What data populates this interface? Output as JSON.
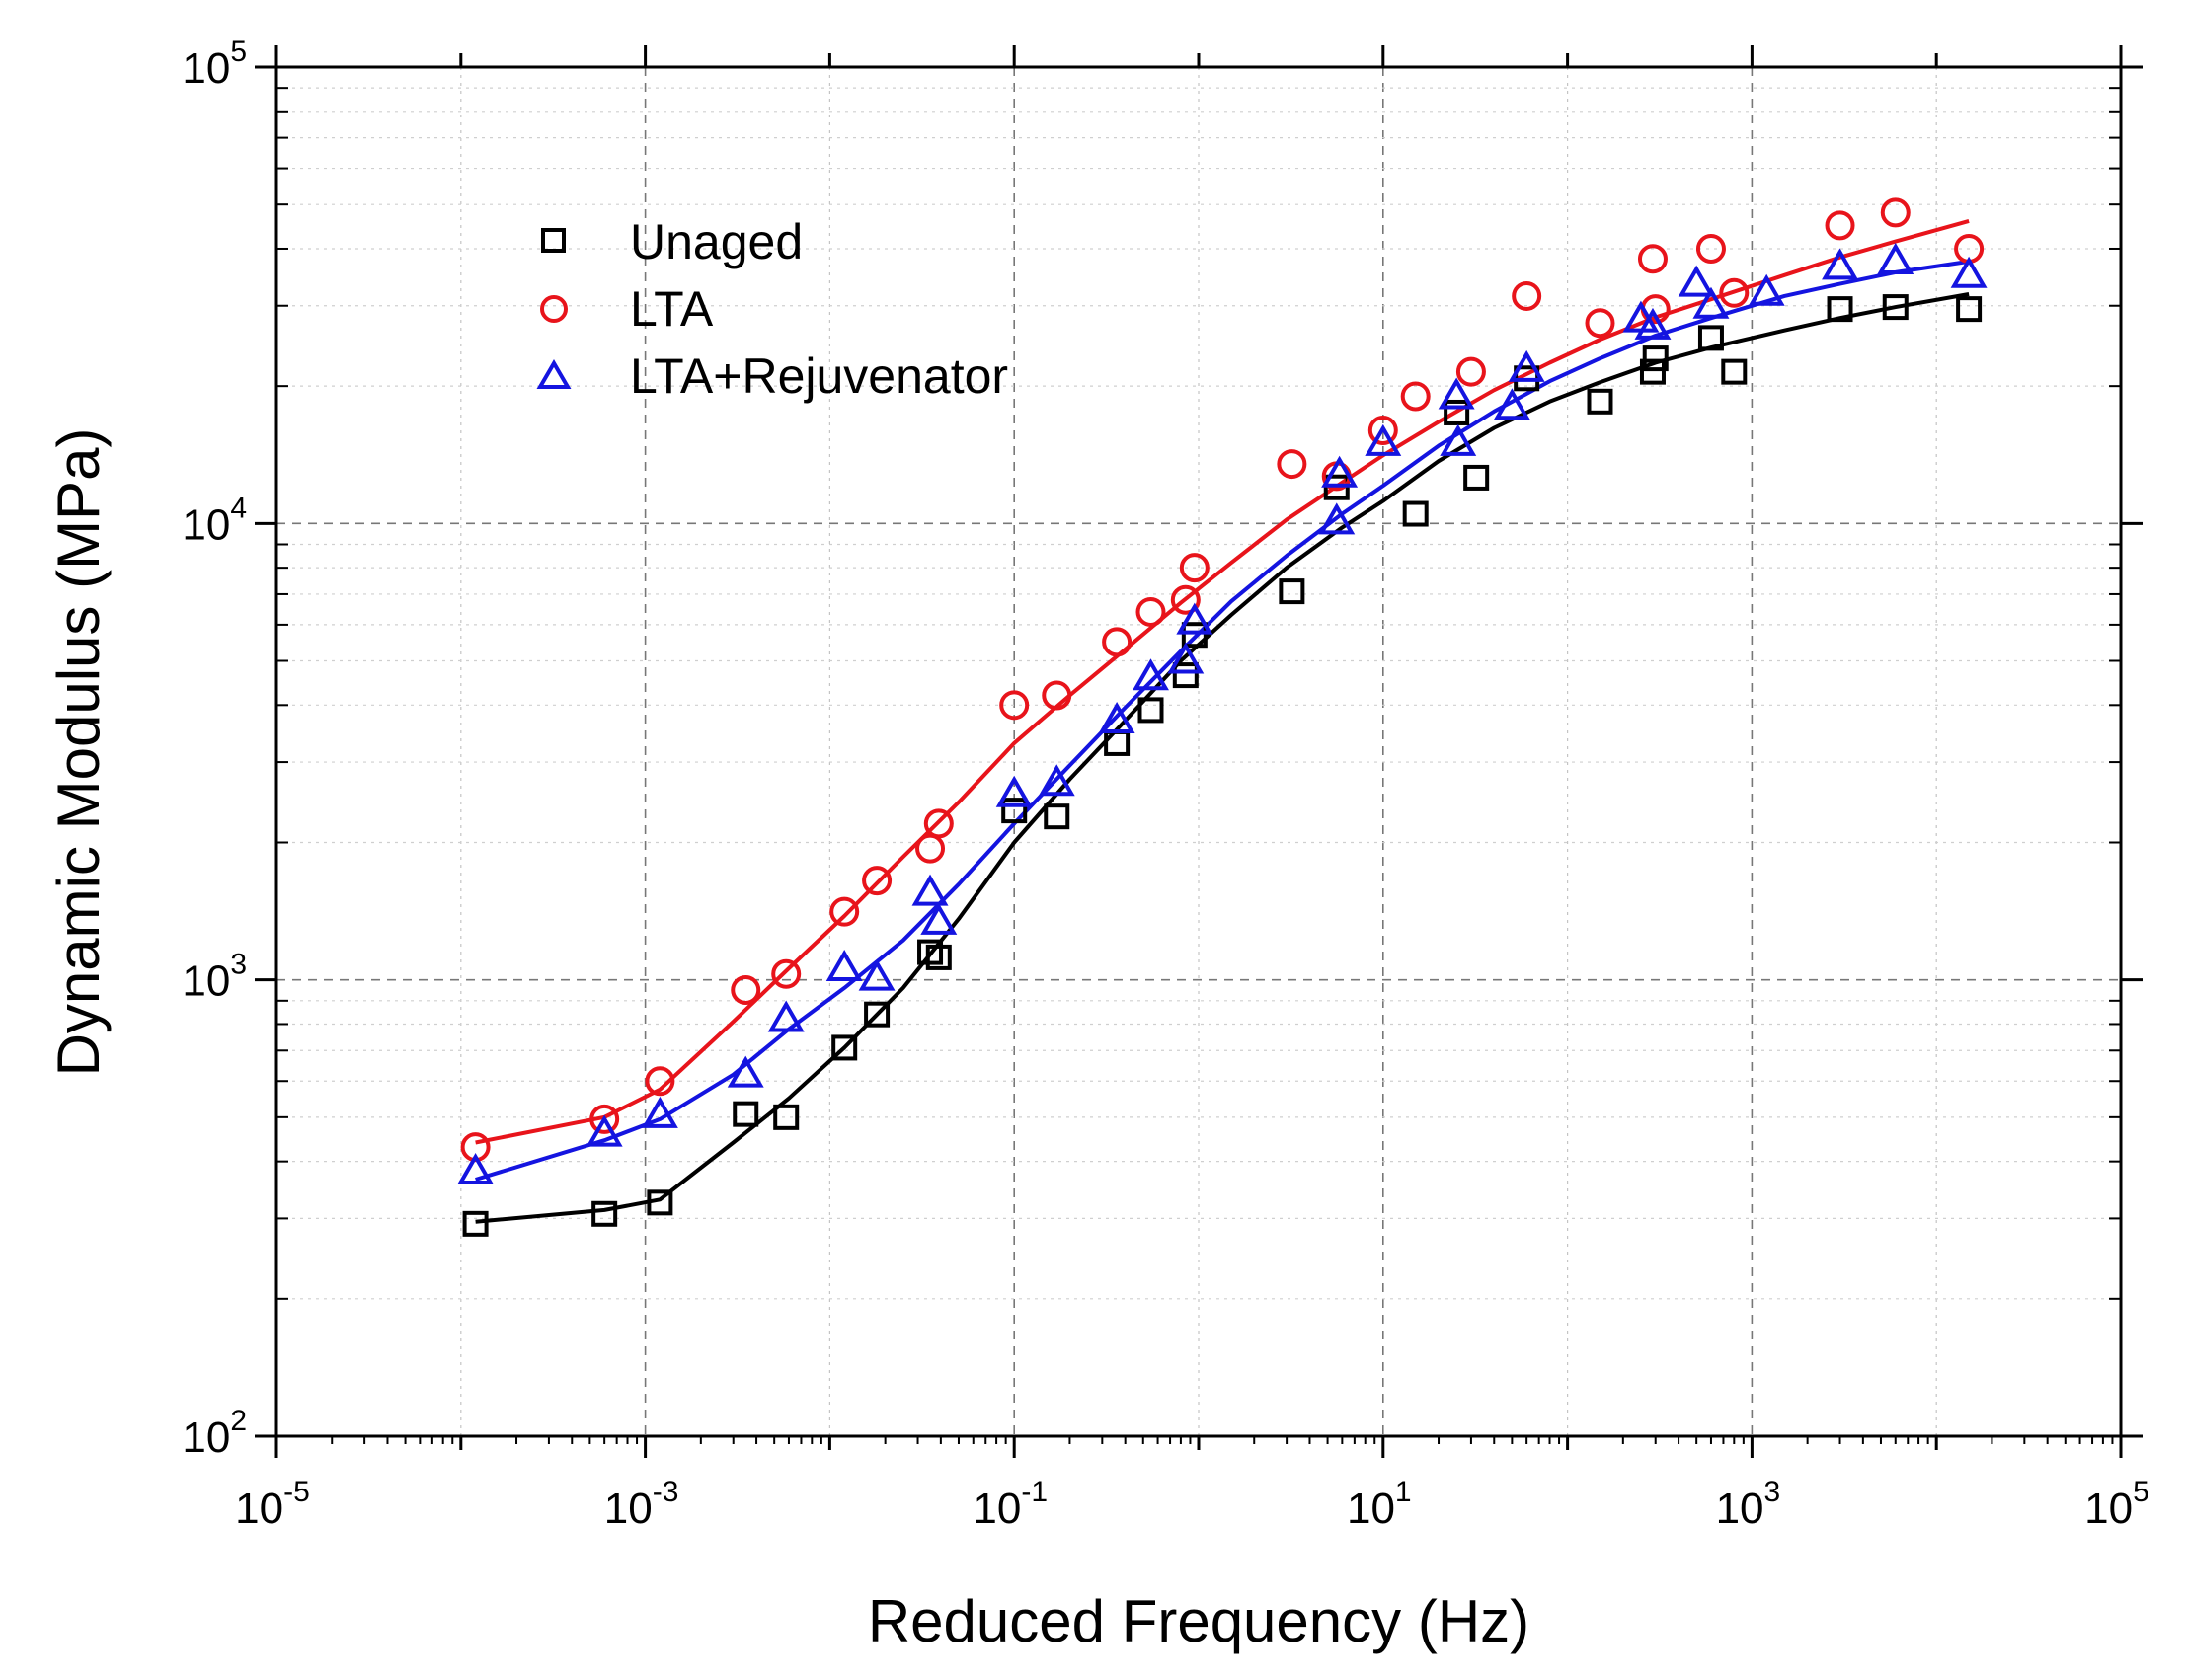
{
  "chart_data": {
    "type": "scatter",
    "title": "",
    "xlabel": "Reduced Frequency (Hz)",
    "ylabel": "Dynamic Modulus (MPa)",
    "xscale": "log",
    "yscale": "log",
    "xlim": [
      1e-05,
      100000.0
    ],
    "ylim": [
      100,
      100000
    ],
    "grid": true,
    "legend_position": "top-left",
    "x_ticks": [
      {
        "value": 1e-05,
        "base": "10",
        "exp": "-5"
      },
      {
        "value": 0.001,
        "base": "10",
        "exp": "-3"
      },
      {
        "value": 0.1,
        "base": "10",
        "exp": "-1"
      },
      {
        "value": 10.0,
        "base": "10",
        "exp": "1"
      },
      {
        "value": 1000.0,
        "base": "10",
        "exp": "3"
      },
      {
        "value": 100000.0,
        "base": "10",
        "exp": "5"
      }
    ],
    "y_ticks": [
      {
        "value": 100,
        "base": "10",
        "exp": "2"
      },
      {
        "value": 1000,
        "base": "10",
        "exp": "3"
      },
      {
        "value": 10000,
        "base": "10",
        "exp": "4"
      },
      {
        "value": 100000,
        "base": "10",
        "exp": "5"
      }
    ],
    "series": [
      {
        "name": "Unaged",
        "marker": "square",
        "color": "#000000",
        "points": [
          [
            0.00012,
            292
          ],
          [
            0.0006,
            307
          ],
          [
            0.0012,
            325
          ],
          [
            0.0035,
            508
          ],
          [
            0.0058,
            500
          ],
          [
            0.012,
            710
          ],
          [
            0.018,
            840
          ],
          [
            0.035,
            1150
          ],
          [
            0.039,
            1120
          ],
          [
            0.1,
            2350
          ],
          [
            0.17,
            2280
          ],
          [
            0.36,
            3300
          ],
          [
            0.55,
            3900
          ],
          [
            0.85,
            4650
          ],
          [
            0.95,
            5700
          ],
          [
            3.2,
            7100
          ],
          [
            5.6,
            12000
          ],
          [
            15,
            10500
          ],
          [
            25,
            17500
          ],
          [
            32,
            12600
          ],
          [
            60,
            20800
          ],
          [
            150,
            18500
          ],
          [
            290,
            21500
          ],
          [
            300,
            23000
          ],
          [
            600,
            25500
          ],
          [
            800,
            21500
          ],
          [
            3000,
            29500
          ],
          [
            6000,
            29800
          ],
          [
            15000,
            29500
          ]
        ],
        "fit": [
          [
            0.00012,
            295
          ],
          [
            0.0006,
            313
          ],
          [
            0.0012,
            330
          ],
          [
            0.003,
            440
          ],
          [
            0.006,
            550
          ],
          [
            0.012,
            710
          ],
          [
            0.025,
            960
          ],
          [
            0.05,
            1360
          ],
          [
            0.1,
            2000
          ],
          [
            0.2,
            2750
          ],
          [
            0.4,
            3700
          ],
          [
            0.8,
            5000
          ],
          [
            1.5,
            6300
          ],
          [
            3,
            8000
          ],
          [
            6,
            9800
          ],
          [
            10,
            11200
          ],
          [
            20,
            13700
          ],
          [
            40,
            16200
          ],
          [
            80,
            18500
          ],
          [
            150,
            20400
          ],
          [
            300,
            22500
          ],
          [
            600,
            24300
          ],
          [
            1500,
            26500
          ],
          [
            3000,
            28200
          ],
          [
            6000,
            29800
          ],
          [
            15000,
            31800
          ]
        ]
      },
      {
        "name": "LTA",
        "marker": "circle",
        "color": "#e8141b",
        "points": [
          [
            0.00012,
            430
          ],
          [
            0.0006,
            495
          ],
          [
            0.0012,
            600
          ],
          [
            0.0035,
            950
          ],
          [
            0.0058,
            1030
          ],
          [
            0.012,
            1410
          ],
          [
            0.018,
            1650
          ],
          [
            0.035,
            1940
          ],
          [
            0.039,
            2200
          ],
          [
            0.1,
            4000
          ],
          [
            0.17,
            4200
          ],
          [
            0.36,
            5500
          ],
          [
            0.55,
            6400
          ],
          [
            0.85,
            6800
          ],
          [
            0.95,
            8000
          ],
          [
            3.2,
            13500
          ],
          [
            5.6,
            12700
          ],
          [
            10,
            16000
          ],
          [
            15,
            19000
          ],
          [
            30,
            21500
          ],
          [
            60,
            31500
          ],
          [
            150,
            27500
          ],
          [
            290,
            38000
          ],
          [
            300,
            29500
          ],
          [
            600,
            40000
          ],
          [
            800,
            32000
          ],
          [
            3000,
            45000
          ],
          [
            6000,
            48000
          ],
          [
            15000,
            40000
          ]
        ],
        "fit": [
          [
            0.00012,
            440
          ],
          [
            0.0006,
            500
          ],
          [
            0.0012,
            575
          ],
          [
            0.003,
            810
          ],
          [
            0.006,
            1060
          ],
          [
            0.012,
            1380
          ],
          [
            0.025,
            1860
          ],
          [
            0.05,
            2450
          ],
          [
            0.1,
            3300
          ],
          [
            0.2,
            4200
          ],
          [
            0.4,
            5300
          ],
          [
            0.8,
            6700
          ],
          [
            1.5,
            8200
          ],
          [
            3,
            10200
          ],
          [
            6,
            12300
          ],
          [
            10,
            14100
          ],
          [
            20,
            16700
          ],
          [
            40,
            19600
          ],
          [
            80,
            22500
          ],
          [
            150,
            25300
          ],
          [
            300,
            28300
          ],
          [
            600,
            31000
          ],
          [
            1500,
            35000
          ],
          [
            3000,
            38300
          ],
          [
            6000,
            41500
          ],
          [
            15000,
            46000
          ]
        ]
      },
      {
        "name": "LTA+Rejuvenator",
        "marker": "triangle",
        "color": "#1414e0",
        "points": [
          [
            0.00012,
            380
          ],
          [
            0.0006,
            460
          ],
          [
            0.0012,
            505
          ],
          [
            0.0035,
            620
          ],
          [
            0.0058,
            820
          ],
          [
            0.012,
            1060
          ],
          [
            0.018,
            1010
          ],
          [
            0.035,
            1550
          ],
          [
            0.039,
            1340
          ],
          [
            0.1,
            2550
          ],
          [
            0.17,
            2700
          ],
          [
            0.36,
            3700
          ],
          [
            0.55,
            4600
          ],
          [
            0.85,
            5000
          ],
          [
            0.95,
            6100
          ],
          [
            5.6,
            10100
          ],
          [
            5.8,
            12800
          ],
          [
            10,
            15000
          ],
          [
            25,
            19000
          ],
          [
            25.5,
            15000
          ],
          [
            50,
            18000
          ],
          [
            60,
            21800
          ],
          [
            250,
            28000
          ],
          [
            290,
            27000
          ],
          [
            500,
            33500
          ],
          [
            600,
            30000
          ],
          [
            1200,
            32000
          ],
          [
            3000,
            36500
          ],
          [
            6000,
            37500
          ],
          [
            15000,
            35000
          ]
        ],
        "fit": [
          [
            0.00012,
            365
          ],
          [
            0.0006,
            445
          ],
          [
            0.0012,
            495
          ],
          [
            0.003,
            620
          ],
          [
            0.006,
            780
          ],
          [
            0.012,
            960
          ],
          [
            0.025,
            1220
          ],
          [
            0.05,
            1620
          ],
          [
            0.1,
            2200
          ],
          [
            0.2,
            2950
          ],
          [
            0.4,
            3950
          ],
          [
            0.8,
            5250
          ],
          [
            1.5,
            6750
          ],
          [
            3,
            8500
          ],
          [
            6,
            10500
          ],
          [
            10,
            12100
          ],
          [
            20,
            14800
          ],
          [
            40,
            17600
          ],
          [
            80,
            20500
          ],
          [
            150,
            23000
          ],
          [
            300,
            25800
          ],
          [
            600,
            28200
          ],
          [
            1500,
            31500
          ],
          [
            3000,
            33500
          ],
          [
            6000,
            35500
          ],
          [
            15000,
            37500
          ]
        ]
      }
    ]
  }
}
